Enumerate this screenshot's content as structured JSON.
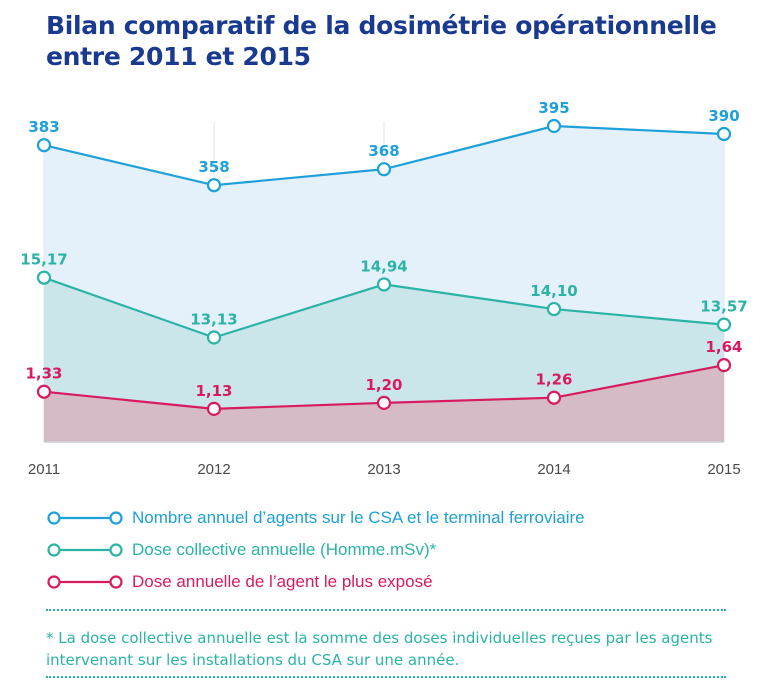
{
  "title": {
    "line1": "Bilan comparatif de la dosimétrie opérationnelle",
    "line2": "entre 2011 et 2015"
  },
  "colors": {
    "title": "#1a3a8f",
    "agents": "#1ea0d8",
    "collective": "#2bb3a6",
    "max_exposure": "#d81b60"
  },
  "chart_data": {
    "type": "line",
    "x": [
      "2011",
      "2012",
      "2013",
      "2014",
      "2015"
    ],
    "series": [
      {
        "name": "Nombre annuel d’agents sur le CSA et le terminal ferroviaire",
        "values": [
          383,
          358,
          368,
          395,
          390
        ],
        "labels": [
          "383",
          "358",
          "368",
          "395",
          "390"
        ],
        "color": "#1ea0d8"
      },
      {
        "name": "Dose collective annuelle (Homme.mSv)*",
        "values": [
          15.17,
          13.13,
          14.94,
          14.1,
          13.57
        ],
        "labels": [
          "15,17",
          "13,13",
          "14,94",
          "14,10",
          "13,57"
        ],
        "color": "#2bb3a6"
      },
      {
        "name": "Dose annuelle de l’agent le plus exposé",
        "values": [
          1.33,
          1.13,
          1.2,
          1.26,
          1.64
        ],
        "labels": [
          "1,33",
          "1,13",
          "1,20",
          "1,26",
          "1,64"
        ],
        "color": "#d81b60"
      }
    ],
    "grid": "vertical",
    "legend": "bottom"
  },
  "footnote": "* La dose collective annuelle est la somme des doses individuelles reçues par les agents intervenant sur les installations du CSA sur une année."
}
